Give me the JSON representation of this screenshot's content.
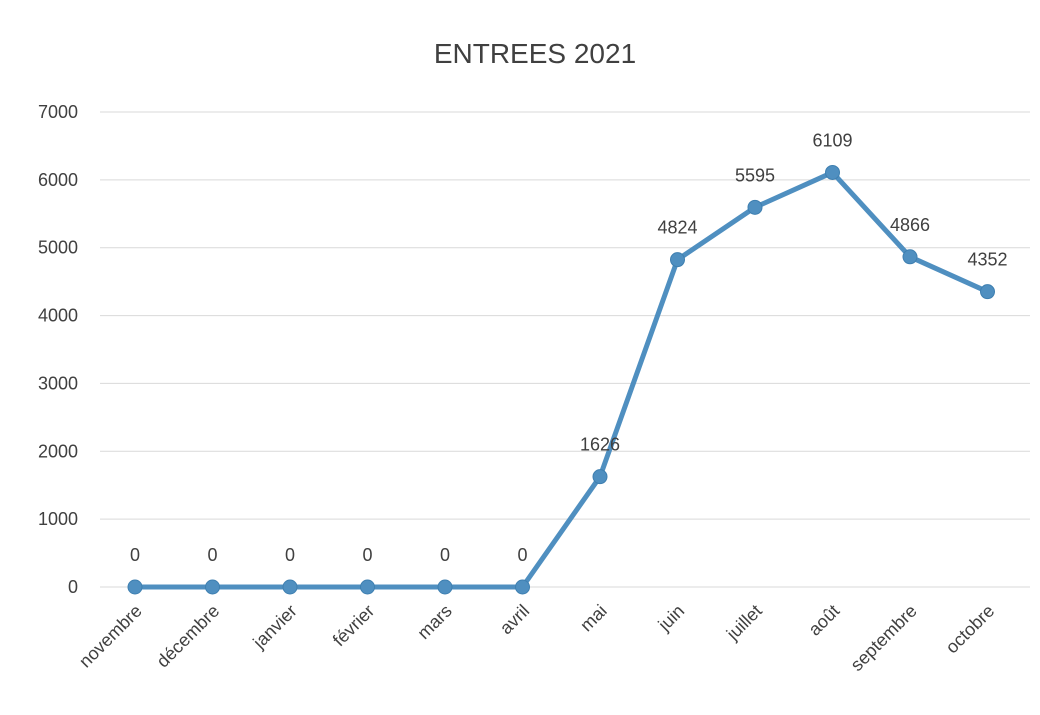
{
  "chart_data": {
    "type": "line",
    "title": "ENTREES 2021",
    "categories": [
      "novembre",
      "décembre",
      "janvier",
      "février",
      "mars",
      "avril",
      "mai",
      "juin",
      "juillet",
      "août",
      "septembre",
      "octobre"
    ],
    "series": [
      {
        "values": [
          0,
          0,
          0,
          0,
          0,
          0,
          1626,
          4824,
          5595,
          6109,
          4866,
          4352
        ]
      }
    ],
    "data_labels": [
      "0",
      "0",
      "0",
      "0",
      "0",
      "0",
      "1626",
      "4824",
      "5595",
      "6109",
      "4866",
      "4352"
    ],
    "y_ticks": [
      "0",
      "1000",
      "2000",
      "3000",
      "4000",
      "5000",
      "6000",
      "7000"
    ],
    "ylim": [
      0,
      7000
    ],
    "grid": true,
    "legend": "none",
    "colors": {
      "line": "#4f8fc0",
      "marker": "#4f8fc0",
      "grid": "#d9d9d9",
      "text": "#404040"
    }
  }
}
